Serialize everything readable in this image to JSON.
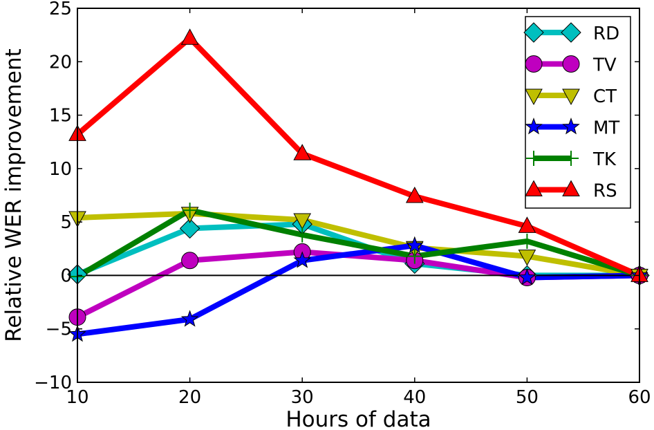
{
  "chart_data": {
    "type": "line",
    "xlabel": "Hours of data",
    "ylabel": "Relative WER improvement",
    "xlim": [
      10,
      60
    ],
    "ylim": [
      -10,
      25
    ],
    "x": [
      10,
      20,
      30,
      40,
      50,
      60
    ],
    "xticks": [
      10,
      20,
      30,
      40,
      50,
      60
    ],
    "yticks": [
      -10,
      -5,
      0,
      5,
      10,
      15,
      20,
      25
    ],
    "xtick_labels": [
      "10",
      "20",
      "30",
      "40",
      "50",
      "60"
    ],
    "ytick_labels": [
      "−10",
      "−5",
      "0",
      "5",
      "10",
      "15",
      "20",
      "25"
    ],
    "grid": false,
    "zero_line": true,
    "legend_position": "top-right",
    "series": [
      {
        "name": "RD",
        "values": [
          0.1,
          4.4,
          4.8,
          1.1,
          0.0,
          0.0
        ],
        "color": "#00bfbf",
        "marker": "diamond"
      },
      {
        "name": "TV",
        "values": [
          -3.9,
          1.4,
          2.2,
          1.4,
          -0.2,
          0.0
        ],
        "color": "#bf00bf",
        "marker": "circle"
      },
      {
        "name": "CT",
        "values": [
          5.4,
          5.8,
          5.2,
          2.6,
          1.8,
          0.0
        ],
        "color": "#bfbf00",
        "marker": "triangle-down"
      },
      {
        "name": "MT",
        "values": [
          -5.5,
          -4.1,
          1.4,
          2.8,
          -0.2,
          0.0
        ],
        "color": "#0000ff",
        "marker": "star"
      },
      {
        "name": "TK",
        "values": [
          -0.1,
          6.1,
          3.8,
          1.8,
          3.2,
          0.0
        ],
        "color": "#008000",
        "marker": "plus"
      },
      {
        "name": "RS",
        "values": [
          13.2,
          22.2,
          11.4,
          7.4,
          4.6,
          0.0
        ],
        "color": "#ff0000",
        "marker": "triangle-up"
      }
    ]
  }
}
